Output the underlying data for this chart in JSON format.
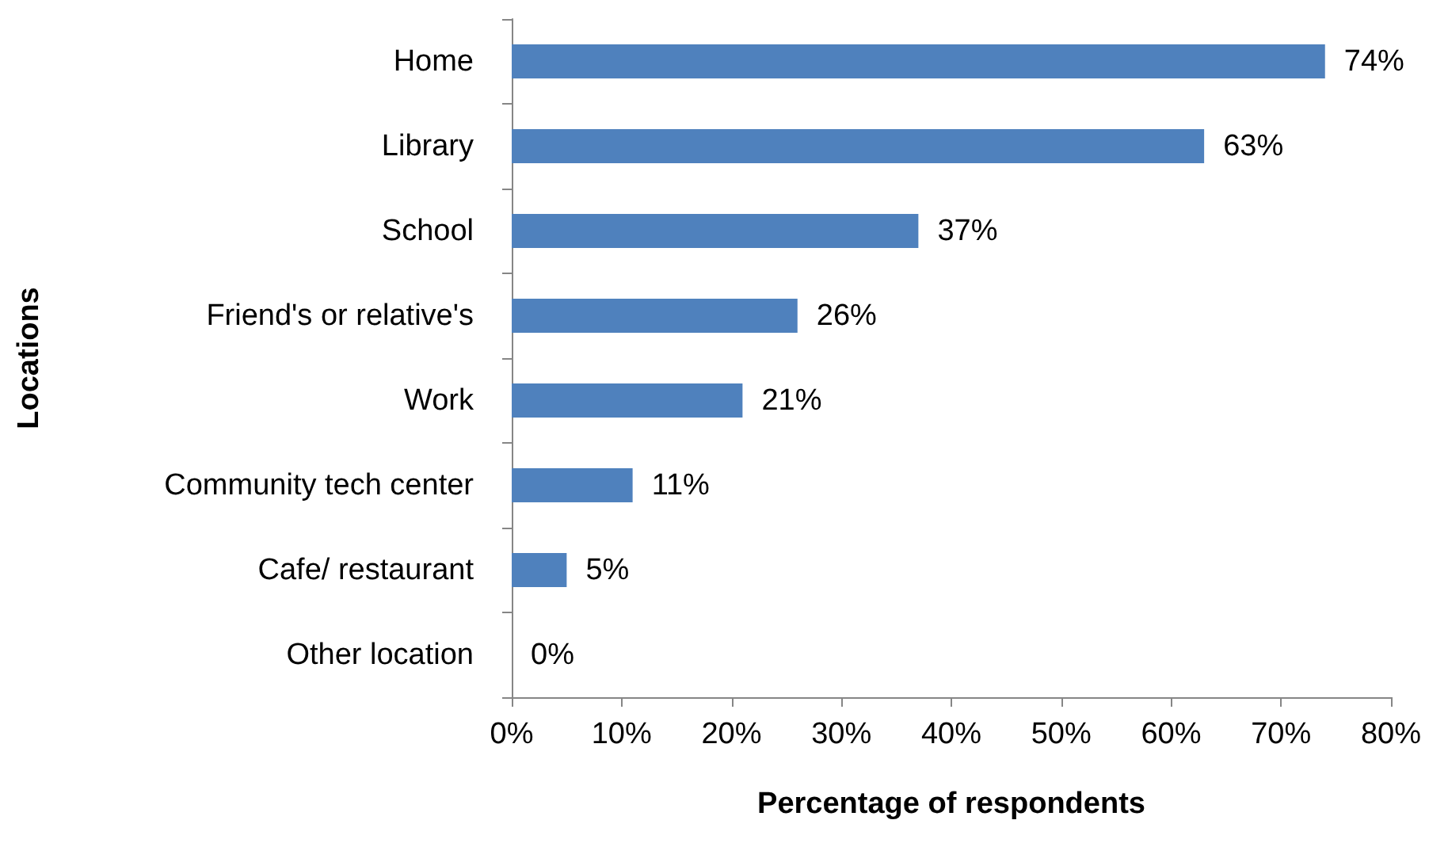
{
  "chart_data": {
    "type": "bar",
    "orientation": "horizontal",
    "xlabel": "Percentage of respondents",
    "ylabel": "Locations",
    "categories": [
      "Home",
      "Library",
      "School",
      "Friend's or relative's",
      "Work",
      "Community tech center",
      "Cafe/ restaurant",
      "Other location"
    ],
    "values": [
      74,
      63,
      37,
      26,
      21,
      11,
      5,
      0
    ],
    "value_labels": [
      "74%",
      "63%",
      "37%",
      "26%",
      "21%",
      "11%",
      "5%",
      "0%"
    ],
    "color": "#4f81bd",
    "xlim": [
      0,
      80
    ],
    "xticks": [
      {
        "value": 0,
        "label": "0%"
      },
      {
        "value": 10,
        "label": "10%"
      },
      {
        "value": 20,
        "label": "20%"
      },
      {
        "value": 30,
        "label": "30%"
      },
      {
        "value": 40,
        "label": "40%"
      },
      {
        "value": 50,
        "label": "50%"
      },
      {
        "value": 60,
        "label": "60%"
      },
      {
        "value": 70,
        "label": "70%"
      },
      {
        "value": 80,
        "label": "80%"
      }
    ],
    "grid": false
  }
}
